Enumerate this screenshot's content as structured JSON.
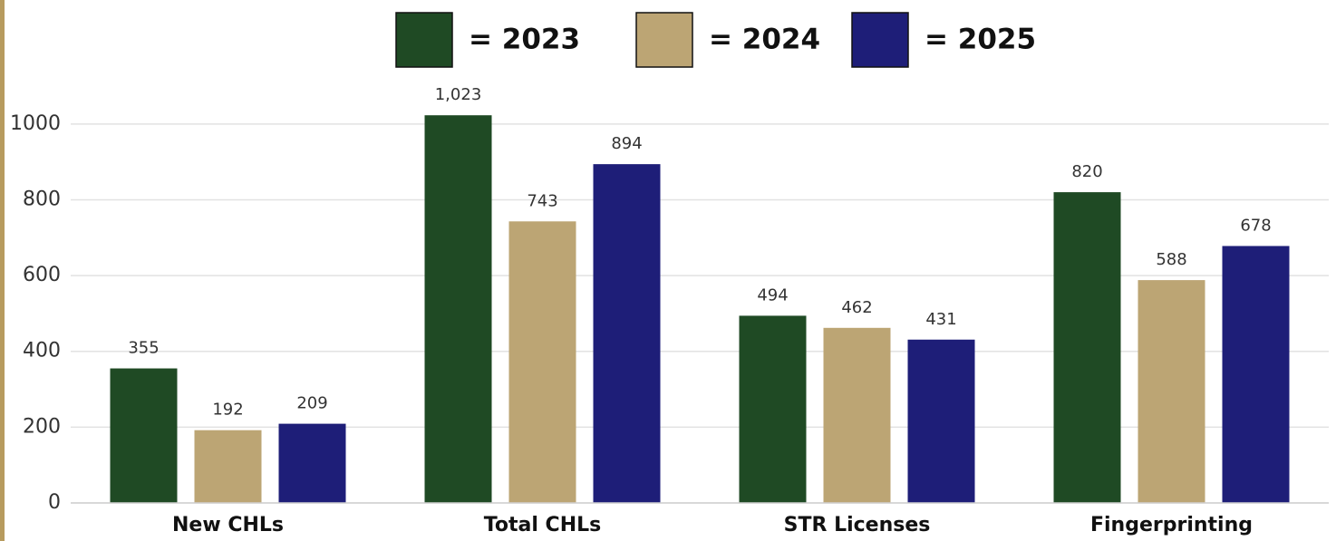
{
  "chart_data": {
    "type": "bar",
    "categories": [
      "New CHLs",
      "Total CHLs",
      "STR Licenses",
      "Fingerprinting"
    ],
    "series": [
      {
        "name": "= 2023",
        "color": "#1f4a24",
        "values": [
          355,
          1023,
          494,
          820
        ],
        "value_labels": [
          "355",
          "1,023",
          "494",
          "820"
        ]
      },
      {
        "name": "= 2024",
        "color": "#bca574",
        "values": [
          192,
          743,
          462,
          588
        ]
      },
      {
        "name": "= 2025",
        "color": "#1e1e78",
        "values": [
          209,
          894,
          431,
          678
        ]
      }
    ],
    "ylim": [
      0,
      1100
    ],
    "yticks": [
      0,
      200,
      400,
      600,
      800,
      1000
    ],
    "grid": true
  }
}
